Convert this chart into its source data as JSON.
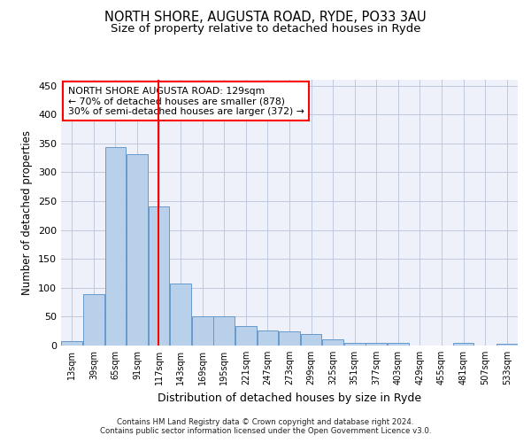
{
  "title1": "NORTH SHORE, AUGUSTA ROAD, RYDE, PO33 3AU",
  "title2": "Size of property relative to detached houses in Ryde",
  "xlabel": "Distribution of detached houses by size in Ryde",
  "ylabel": "Number of detached properties",
  "footer1": "Contains HM Land Registry data © Crown copyright and database right 2024.",
  "footer2": "Contains public sector information licensed under the Open Government Licence v3.0.",
  "annotation_line1": "NORTH SHORE AUGUSTA ROAD: 129sqm",
  "annotation_line2": "← 70% of detached houses are smaller (878)",
  "annotation_line3": "30% of semi-detached houses are larger (372) →",
  "bar_edges": [
    13,
    39,
    65,
    91,
    117,
    143,
    169,
    195,
    221,
    247,
    273,
    299,
    325,
    351,
    377,
    403,
    429,
    455,
    481,
    507,
    533
  ],
  "bar_heights": [
    7,
    89,
    343,
    331,
    241,
    108,
    50,
    50,
    33,
    26,
    25,
    20,
    10,
    5,
    5,
    4,
    0,
    0,
    4,
    0,
    3
  ],
  "bar_color": "#b8d0ea",
  "bar_edge_color": "#6699cc",
  "red_line_x": 129,
  "ylim": [
    0,
    460
  ],
  "yticks": [
    0,
    50,
    100,
    150,
    200,
    250,
    300,
    350,
    400,
    450
  ],
  "bg_color": "#eef1fa",
  "grid_color": "#c0c8dc",
  "title_fontsize": 10.5,
  "subtitle_fontsize": 9.5,
  "axis_label_fontsize": 9,
  "tick_fontsize": 7,
  "ylabel_fontsize": 8.5
}
